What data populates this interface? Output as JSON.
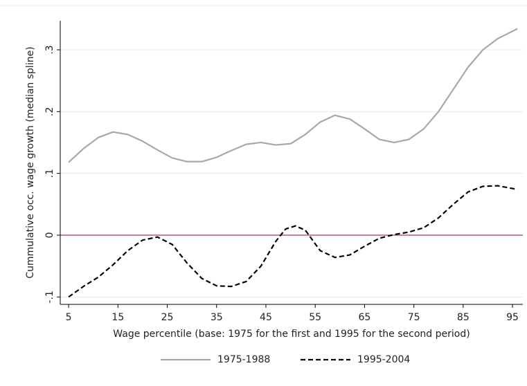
{
  "chart_data": {
    "type": "line",
    "xlabel": "Wage percentile (base: 1975 for the first and 1995 for the second period)",
    "ylabel": "Cummulative occ. wage growth (median spline)",
    "series": [
      {
        "name": "1975-1988",
        "color": "#a8a8a8",
        "dash": "solid",
        "x": [
          5,
          8,
          11,
          14,
          17,
          20,
          23,
          26,
          29,
          32,
          35,
          38,
          41,
          44,
          47,
          50,
          53,
          56,
          59,
          62,
          65,
          68,
          71,
          74,
          77,
          80,
          83,
          86,
          89,
          92,
          96
        ],
        "values": [
          0.118,
          0.14,
          0.158,
          0.167,
          0.163,
          0.152,
          0.138,
          0.125,
          0.119,
          0.119,
          0.126,
          0.137,
          0.147,
          0.15,
          0.146,
          0.148,
          0.163,
          0.183,
          0.194,
          0.188,
          0.172,
          0.155,
          0.15,
          0.155,
          0.172,
          0.2,
          0.236,
          0.272,
          0.3,
          0.318,
          0.334
        ]
      },
      {
        "name": "1995-2004",
        "color": "#000000",
        "dash": "dashed",
        "x": [
          5,
          8,
          11,
          14,
          17,
          20,
          23,
          26,
          29,
          32,
          35,
          38,
          41,
          44,
          47,
          49,
          51,
          53,
          56,
          59,
          62,
          65,
          68,
          71,
          74,
          77,
          80,
          83,
          86,
          89,
          92,
          96
        ],
        "values": [
          -0.1,
          -0.083,
          -0.068,
          -0.048,
          -0.025,
          -0.008,
          -0.003,
          -0.015,
          -0.045,
          -0.07,
          -0.082,
          -0.083,
          -0.075,
          -0.05,
          -0.01,
          0.01,
          0.015,
          0.008,
          -0.025,
          -0.036,
          -0.032,
          -0.018,
          -0.005,
          0.001,
          0.005,
          0.012,
          0.028,
          0.05,
          0.07,
          0.079,
          0.08,
          0.074
        ]
      }
    ],
    "reference_line": {
      "value": 0,
      "color": "#b5485f"
    },
    "xlim": [
      3.3,
      97.1
    ],
    "ylim": [
      -0.112,
      0.347
    ],
    "xticks": [
      5,
      15,
      25,
      35,
      45,
      55,
      65,
      75,
      85,
      95
    ],
    "yticks": [
      {
        "value": -0.1,
        "label": "-.1"
      },
      0,
      {
        "value": 0.1,
        "label": ".1"
      },
      {
        "value": 0.2,
        "label": ".2"
      },
      {
        "value": 0.3,
        "label": ".3"
      }
    ],
    "grid": true,
    "legend": "bottom"
  }
}
